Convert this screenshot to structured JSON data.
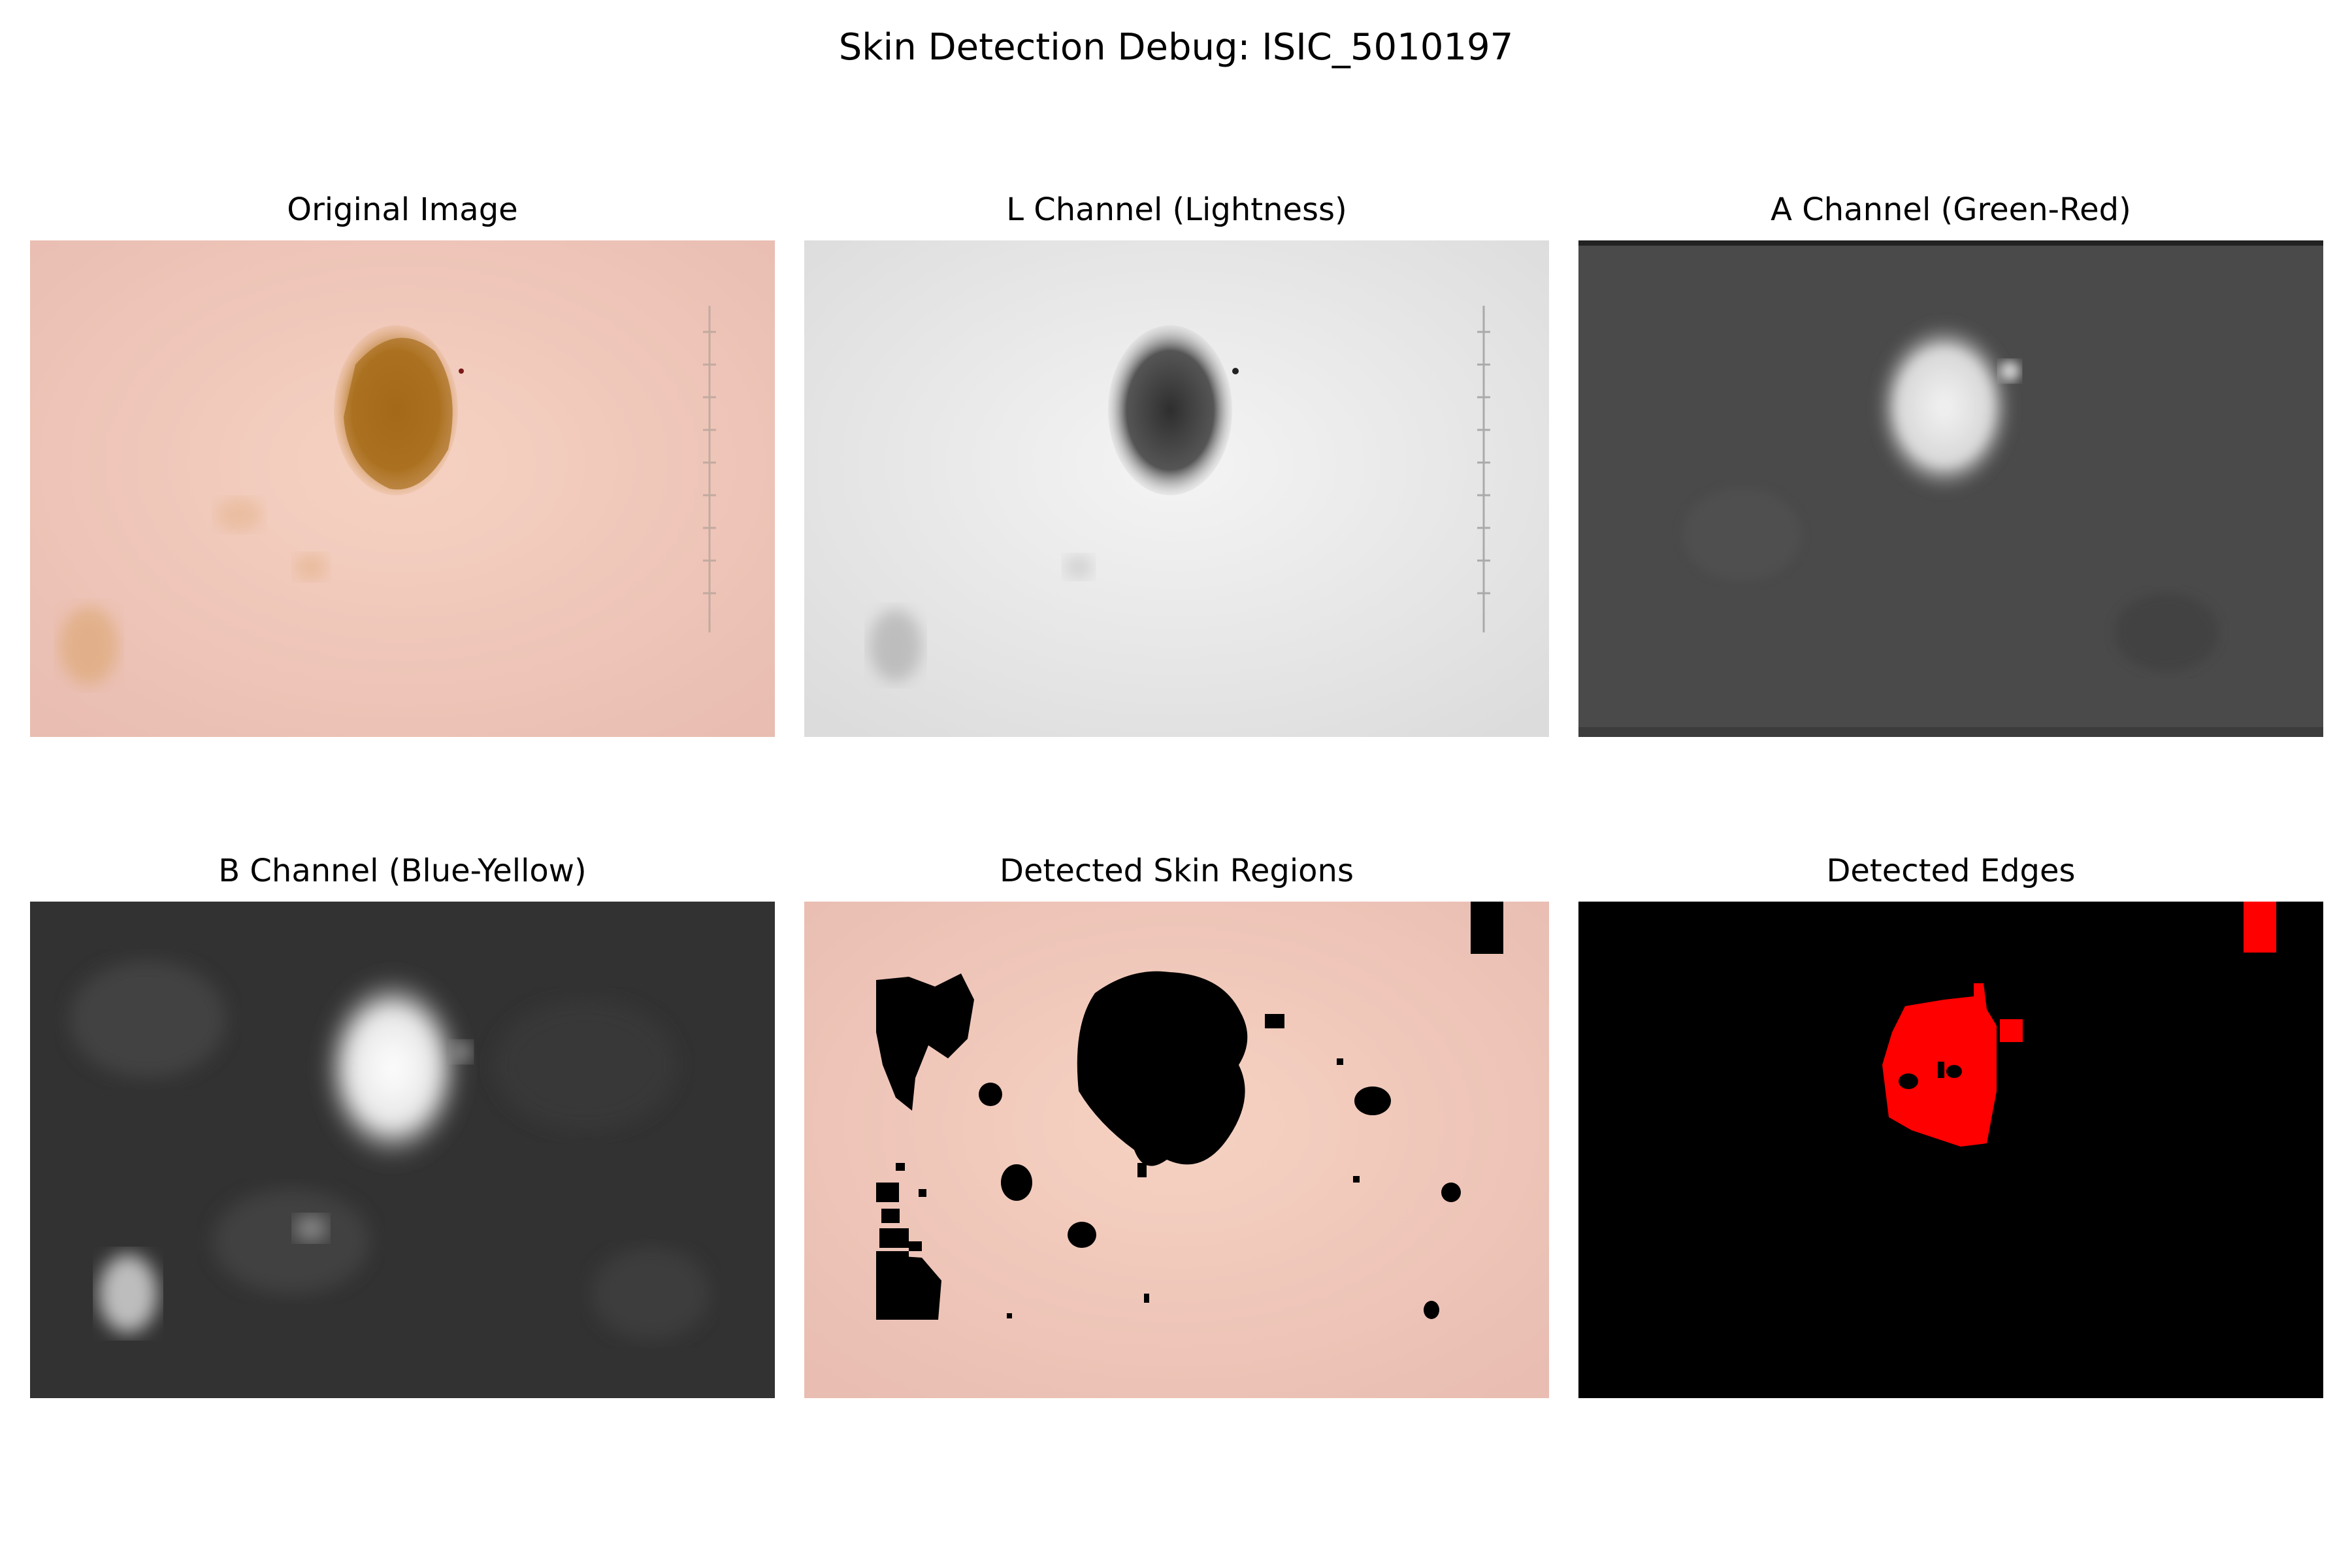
{
  "figure": {
    "title": "Skin Detection Debug: ISIC_5010197"
  },
  "panels": [
    {
      "title": "Original Image",
      "kind": "original"
    },
    {
      "title": "L Channel (Lightness)",
      "kind": "lightness"
    },
    {
      "title": "A Channel (Green-Red)",
      "kind": "green-red"
    },
    {
      "title": "B Channel (Blue-Yellow)",
      "kind": "blue-yellow"
    },
    {
      "title": "Detected Skin Regions",
      "kind": "skin-mask"
    },
    {
      "title": "Detected Edges",
      "kind": "edges"
    }
  ],
  "colors": {
    "skin": "#eec3b4",
    "lesion_brown": "#a86d1c",
    "lightness_bg": "#ececec",
    "a_channel_bg": "#4a4a4a",
    "b_channel_bg": "#323232",
    "mask_black": "#000000",
    "edge_red": "#ff0000"
  }
}
